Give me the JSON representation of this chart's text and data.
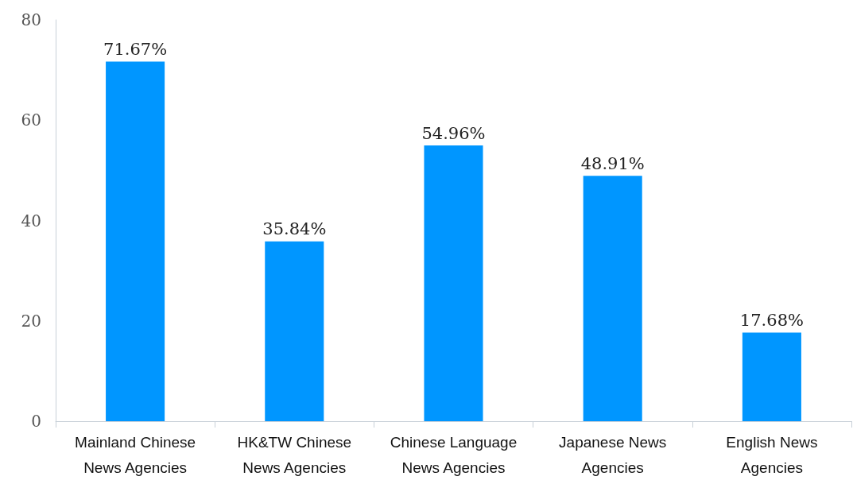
{
  "chart_data": {
    "type": "bar",
    "categories": [
      "Mainland Chinese\nNews Agencies",
      "HK&TW Chinese\nNews Agencies",
      "Chinese Language\nNews Agencies",
      "Japanese News\nAgencies",
      "English News\nAgencies"
    ],
    "values": [
      71.67,
      35.84,
      54.96,
      48.91,
      17.68
    ],
    "value_labels": [
      "71.67%",
      "35.84%",
      "54.96%",
      "48.91%",
      "17.68%"
    ],
    "color": "#0096ff",
    "ylim": [
      0,
      80
    ],
    "yticks": [
      0,
      20,
      40,
      60,
      80
    ],
    "grid": false
  }
}
